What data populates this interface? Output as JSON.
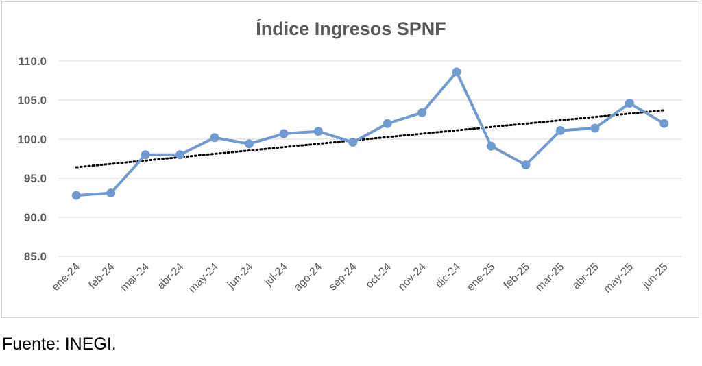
{
  "chart_data": {
    "type": "line",
    "title": "Índice Ingresos SPNF",
    "xlabel": "",
    "ylabel": "",
    "categories": [
      "ene-24",
      "feb-24",
      "mar-24",
      "abr-24",
      "may-24",
      "jun-24",
      "jul-24",
      "ago-24",
      "sep-24",
      "oct-24",
      "nov-24",
      "dic-24",
      "ene-25",
      "feb-25",
      "mar-25",
      "abr-25",
      "may-25",
      "jun-25"
    ],
    "series": [
      {
        "values": [
          92.8,
          93.1,
          98.0,
          98.0,
          100.2,
          99.4,
          100.7,
          101.0,
          99.6,
          102.0,
          103.4,
          108.6,
          99.1,
          96.7,
          101.1,
          101.4,
          104.6,
          102.0
        ],
        "color": "#6f9bd1"
      }
    ],
    "trendline": {
      "style": "dotted",
      "color": "#000000",
      "start": 96.4,
      "end": 103.7
    },
    "ylim": [
      85.0,
      110.0
    ],
    "yticks": [
      "85.0",
      "90.0",
      "95.0",
      "100.0",
      "105.0",
      "110.0"
    ],
    "grid": true,
    "legend": "none"
  },
  "source": "Fuente: INEGI."
}
